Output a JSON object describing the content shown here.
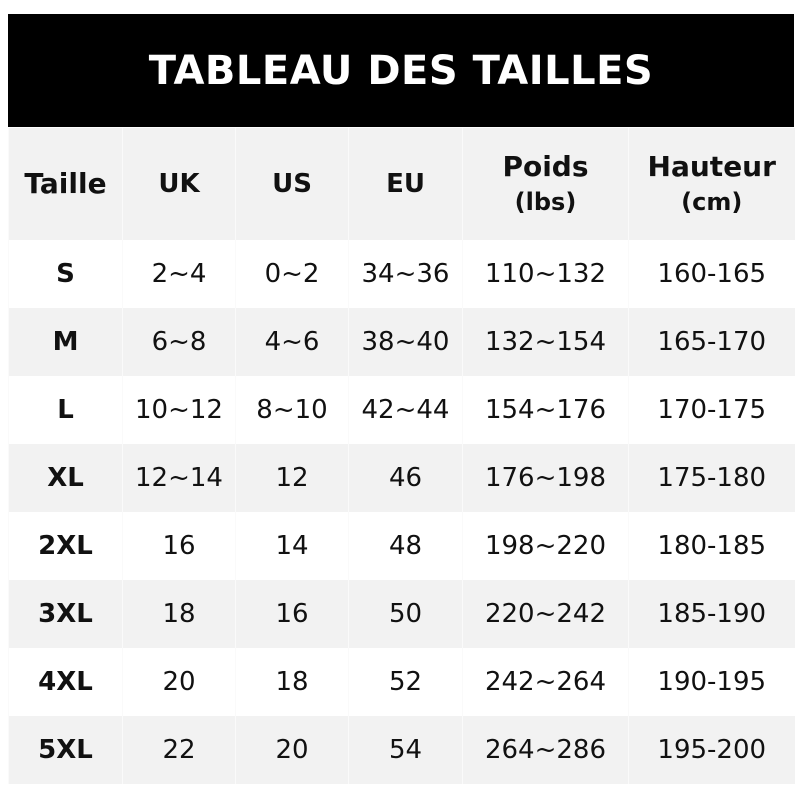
{
  "title": "TABLEAU DES TAILLES",
  "headers": {
    "taille": "Taille",
    "uk": "UK",
    "us": "US",
    "eu": "EU",
    "poids": "Poids",
    "poids_unit": "(lbs)",
    "hauteur": "Hauteur",
    "hauteur_unit": "(cm)"
  },
  "rows": [
    {
      "size": "S",
      "uk": "2~4",
      "us": "0~2",
      "eu": "34~36",
      "poids": "110~132",
      "hauteur": "160-165"
    },
    {
      "size": "M",
      "uk": "6~8",
      "us": "4~6",
      "eu": "38~40",
      "poids": "132~154",
      "hauteur": "165-170"
    },
    {
      "size": "L",
      "uk": "10~12",
      "us": "8~10",
      "eu": "42~44",
      "poids": "154~176",
      "hauteur": "170-175"
    },
    {
      "size": "XL",
      "uk": "12~14",
      "us": "12",
      "eu": "46",
      "poids": "176~198",
      "hauteur": "175-180"
    },
    {
      "size": "2XL",
      "uk": "16",
      "us": "14",
      "eu": "48",
      "poids": "198~220",
      "hauteur": "180-185"
    },
    {
      "size": "3XL",
      "uk": "18",
      "us": "16",
      "eu": "50",
      "poids": "220~242",
      "hauteur": "185-190"
    },
    {
      "size": "4XL",
      "uk": "20",
      "us": "18",
      "eu": "52",
      "poids": "242~264",
      "hauteur": "190-195"
    },
    {
      "size": "5XL",
      "uk": "22",
      "us": "20",
      "eu": "54",
      "poids": "264~286",
      "hauteur": "195-200"
    }
  ]
}
